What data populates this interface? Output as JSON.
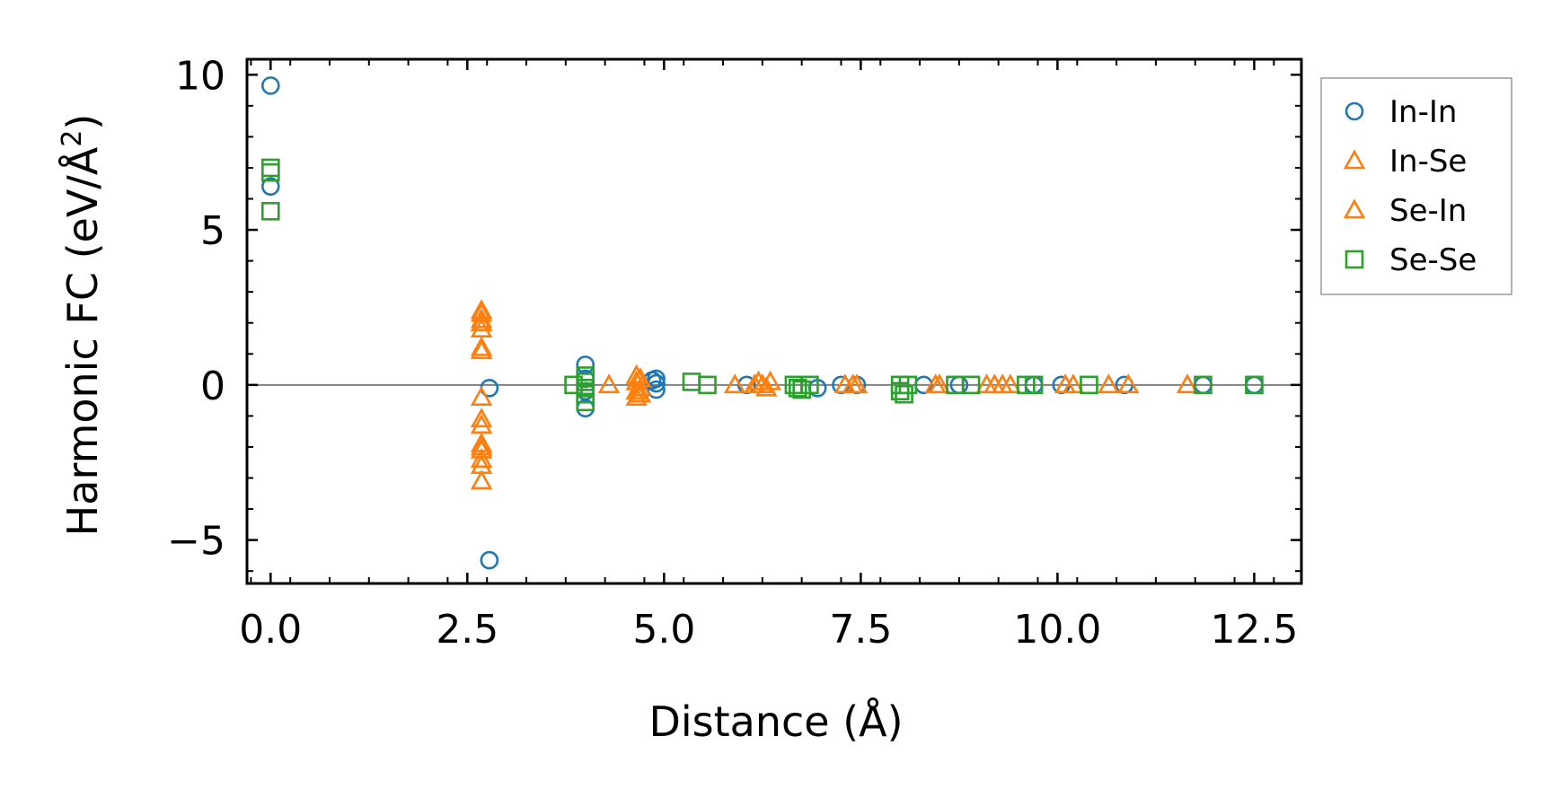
{
  "chart_data": {
    "type": "scatter",
    "title": "",
    "xlabel": "Distance (Å)",
    "ylabel_prefix": "Harmonic FC (eV/Å",
    "ylabel_sup": "2",
    "ylabel_suffix": ")",
    "xlim": [
      -0.3,
      13.1
    ],
    "ylim": [
      -6.4,
      10.5
    ],
    "xticks": [
      0.0,
      2.5,
      5.0,
      7.5,
      10.0,
      12.5
    ],
    "xtick_labels": [
      "0.0",
      "2.5",
      "5.0",
      "7.5",
      "10.0",
      "12.5"
    ],
    "yticks": [
      -5,
      0,
      5,
      10
    ],
    "ytick_labels": [
      "−5",
      "0",
      "5",
      "10"
    ],
    "zero_line": true,
    "legend_position": "outside-right",
    "series": [
      {
        "name": "In-In",
        "marker": "circle",
        "color": "#1f77b4",
        "points": [
          [
            0.0,
            9.65
          ],
          [
            0.0,
            6.4
          ],
          [
            2.78,
            -0.1
          ],
          [
            2.78,
            -5.65
          ],
          [
            4.0,
            0.65
          ],
          [
            4.0,
            0.2
          ],
          [
            4.0,
            -0.2
          ],
          [
            4.0,
            -0.75
          ],
          [
            4.9,
            0.2
          ],
          [
            4.9,
            0.05
          ],
          [
            4.9,
            -0.15
          ],
          [
            4.85,
            0.15
          ],
          [
            6.05,
            0.0
          ],
          [
            6.95,
            -0.1
          ],
          [
            7.25,
            0.0
          ],
          [
            7.45,
            0.0
          ],
          [
            8.3,
            0.0
          ],
          [
            8.75,
            0.0
          ],
          [
            9.7,
            0.0
          ],
          [
            10.05,
            0.0
          ],
          [
            10.85,
            0.0
          ],
          [
            11.85,
            0.0
          ],
          [
            12.5,
            0.0
          ]
        ]
      },
      {
        "name": "In-Se",
        "marker": "triangle",
        "color": "#ff7f0e",
        "points": [
          [
            2.68,
            2.3
          ],
          [
            2.68,
            2.1
          ],
          [
            2.68,
            1.8
          ],
          [
            2.68,
            1.2
          ],
          [
            2.68,
            -0.4
          ],
          [
            2.68,
            -1.1
          ],
          [
            2.68,
            -1.9
          ],
          [
            2.68,
            -2.1
          ],
          [
            2.68,
            -2.4
          ],
          [
            2.68,
            -3.1
          ],
          [
            4.3,
            0.0
          ],
          [
            4.65,
            0.3
          ],
          [
            4.65,
            0.1
          ],
          [
            4.65,
            -0.2
          ],
          [
            4.65,
            -0.4
          ],
          [
            5.9,
            0.0
          ],
          [
            6.2,
            0.1
          ],
          [
            6.25,
            0.0
          ],
          [
            6.3,
            -0.1
          ],
          [
            7.3,
            0.0
          ],
          [
            7.4,
            0.0
          ],
          [
            8.45,
            0.0
          ],
          [
            9.1,
            0.0
          ],
          [
            9.3,
            0.0
          ],
          [
            9.4,
            0.0
          ],
          [
            10.1,
            0.0
          ],
          [
            10.65,
            0.0
          ],
          [
            10.9,
            0.0
          ],
          [
            11.65,
            0.0
          ]
        ]
      },
      {
        "name": "Se-In",
        "marker": "triangle",
        "color": "#ff7f0e",
        "points": [
          [
            2.68,
            2.4
          ],
          [
            2.68,
            2.0
          ],
          [
            2.68,
            1.1
          ],
          [
            2.68,
            -1.3
          ],
          [
            2.68,
            -2.0
          ],
          [
            2.68,
            -2.6
          ],
          [
            4.7,
            0.2
          ],
          [
            4.7,
            -0.1
          ],
          [
            4.7,
            -0.3
          ],
          [
            6.15,
            0.0
          ],
          [
            6.35,
            0.1
          ],
          [
            7.45,
            0.0
          ],
          [
            8.5,
            0.0
          ],
          [
            9.2,
            0.0
          ],
          [
            10.2,
            0.0
          ]
        ]
      },
      {
        "name": "Se-Se",
        "marker": "square",
        "color": "#2ca02c",
        "points": [
          [
            0.0,
            7.0
          ],
          [
            0.0,
            6.85
          ],
          [
            0.0,
            5.6
          ],
          [
            3.85,
            0.0
          ],
          [
            4.0,
            0.3
          ],
          [
            4.0,
            0.1
          ],
          [
            4.0,
            -0.1
          ],
          [
            4.0,
            -0.3
          ],
          [
            4.0,
            -0.55
          ],
          [
            5.35,
            0.1
          ],
          [
            5.55,
            0.0
          ],
          [
            6.65,
            0.0
          ],
          [
            6.7,
            -0.1
          ],
          [
            6.75,
            -0.15
          ],
          [
            6.85,
            0.0
          ],
          [
            8.0,
            0.0
          ],
          [
            8.0,
            -0.2
          ],
          [
            8.05,
            -0.3
          ],
          [
            8.1,
            0.0
          ],
          [
            8.7,
            0.0
          ],
          [
            8.9,
            0.0
          ],
          [
            9.6,
            0.0
          ],
          [
            9.7,
            0.0
          ],
          [
            10.4,
            0.0
          ],
          [
            11.85,
            0.0
          ],
          [
            12.5,
            0.0
          ]
        ]
      }
    ]
  }
}
